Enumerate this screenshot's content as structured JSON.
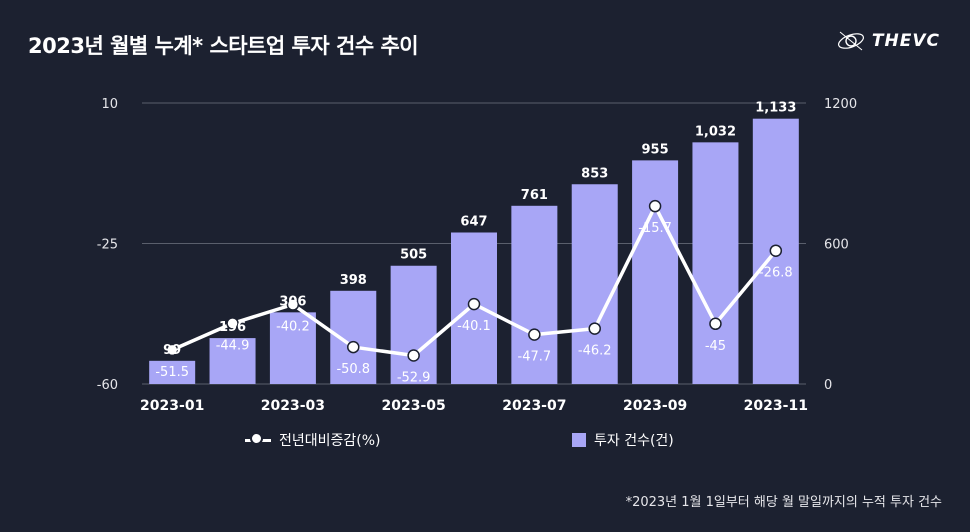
{
  "header": {
    "title": "2023년 월별 누계* 스타트업 투자 건수 추이",
    "logo_text": "THEVC"
  },
  "footnote": "*2023년 1월 1일부터 해당 월 말일까지의 누적 투자 건수",
  "legend": {
    "line_label": "전년대비증감(%)",
    "bar_label": "투자 건수(건)"
  },
  "colors": {
    "background": "#1c2130",
    "bar": "#a8a6f6",
    "line": "#ffffff",
    "grid": "#5a5f6c"
  },
  "chart_data": {
    "type": "bar",
    "categories": [
      "2023-01",
      "2023-02",
      "2023-03",
      "2023-04",
      "2023-05",
      "2023-06",
      "2023-07",
      "2023-08",
      "2023-09",
      "2023-10",
      "2023-11"
    ],
    "x_tick_labels": [
      "2023-01",
      "2023-03",
      "2023-05",
      "2023-07",
      "2023-09",
      "2023-11"
    ],
    "series": [
      {
        "name": "투자 건수(건)",
        "type": "bar",
        "axis": "right",
        "values": [
          99,
          196,
          306,
          398,
          505,
          647,
          761,
          853,
          955,
          1032,
          1133
        ],
        "labels": [
          "99",
          "196",
          "306",
          "398",
          "505",
          "647",
          "761",
          "853",
          "955",
          "1,032",
          "1,133"
        ]
      },
      {
        "name": "전년대비증감(%)",
        "type": "line",
        "axis": "left",
        "values": [
          -51.5,
          -44.9,
          -40.2,
          -50.8,
          -52.9,
          -40.1,
          -47.7,
          -46.2,
          -15.7,
          -45,
          -26.8
        ],
        "labels": [
          "-51.5",
          "-44.9",
          "-40.2",
          "-50.8",
          "-52.9",
          "-40.1",
          "-47.7",
          "-46.2",
          "-15.7",
          "-45",
          "-26.8"
        ]
      }
    ],
    "y_left": {
      "ylim": [
        -60,
        10
      ],
      "ticks": [
        10,
        -25,
        -60
      ],
      "tick_labels": [
        "10",
        "-25",
        "-60"
      ]
    },
    "y_right": {
      "ylim": [
        0,
        1200
      ],
      "ticks": [
        1200,
        600,
        0
      ],
      "tick_labels": [
        "1200",
        "600",
        "0"
      ]
    },
    "grid": true,
    "legend_position": "bottom"
  }
}
